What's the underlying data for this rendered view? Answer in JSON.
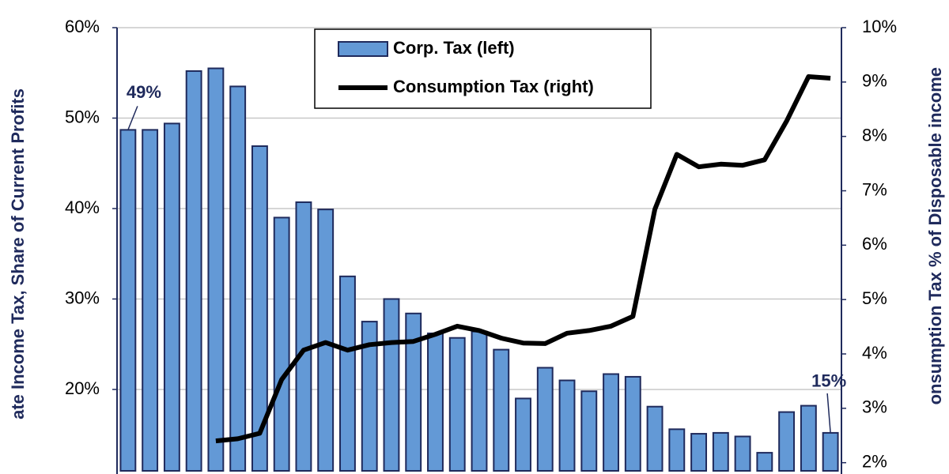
{
  "chart_data": {
    "type": "bar-line",
    "y_label": "ate Income Tax, Share of Current Profits",
    "y2_label": "onsumption Tax % of Disposable income",
    "series": [
      {
        "name": "Corp. Tax (left)",
        "type": "bar",
        "color": "#6399d6",
        "edge_color": "#1f2a5c",
        "values": [
          48.7,
          48.7,
          49.4,
          55.2,
          55.5,
          53.5,
          46.9,
          39.0,
          40.7,
          39.9,
          32.5,
          27.5,
          30.0,
          28.4,
          26.2,
          25.7,
          26.4,
          24.4,
          19.0,
          22.4,
          21.0,
          19.8,
          21.7,
          21.4,
          18.1,
          15.6,
          15.1,
          15.2,
          14.8,
          13.0,
          17.5,
          18.2,
          15.2
        ],
        "value_labels": [
          "49%",
          null,
          null,
          null,
          null,
          null,
          null,
          null,
          null,
          null,
          null,
          null,
          null,
          null,
          null,
          null,
          null,
          null,
          null,
          null,
          null,
          null,
          null,
          null,
          null,
          null,
          null,
          null,
          null,
          null,
          null,
          null,
          "15%"
        ]
      },
      {
        "name": "Consumption Tax (right)",
        "type": "line",
        "axis": "y2",
        "color": "#000000",
        "values": [
          null,
          null,
          null,
          null,
          2.4,
          2.44,
          2.54,
          3.53,
          4.07,
          4.21,
          4.07,
          4.17,
          4.21,
          4.23,
          4.36,
          4.51,
          4.43,
          4.29,
          4.2,
          4.19,
          4.38,
          4.43,
          4.51,
          4.69,
          6.66,
          7.67,
          7.44,
          7.49,
          7.47,
          7.57,
          8.28,
          9.1,
          9.07
        ]
      }
    ],
    "ylim": [
      11,
      60
    ],
    "yticks": [
      {
        "value": 20,
        "label": "20%"
      },
      {
        "value": 30,
        "label": "30%"
      },
      {
        "value": 40,
        "label": "40%"
      },
      {
        "value": 50,
        "label": "50%"
      },
      {
        "value": 60,
        "label": "60%"
      }
    ],
    "y2lim": [
      1.85,
      10
    ],
    "y2ticks": [
      {
        "value": 2,
        "label": "2%"
      },
      {
        "value": 3,
        "label": "3%"
      },
      {
        "value": 4,
        "label": "4%"
      },
      {
        "value": 5,
        "label": "5%"
      },
      {
        "value": 6,
        "label": "6%"
      },
      {
        "value": 7,
        "label": "7%"
      },
      {
        "value": 8,
        "label": "8%"
      },
      {
        "value": 9,
        "label": "9%"
      },
      {
        "value": 10,
        "label": "10%"
      }
    ],
    "grid": true,
    "legend": "top"
  }
}
